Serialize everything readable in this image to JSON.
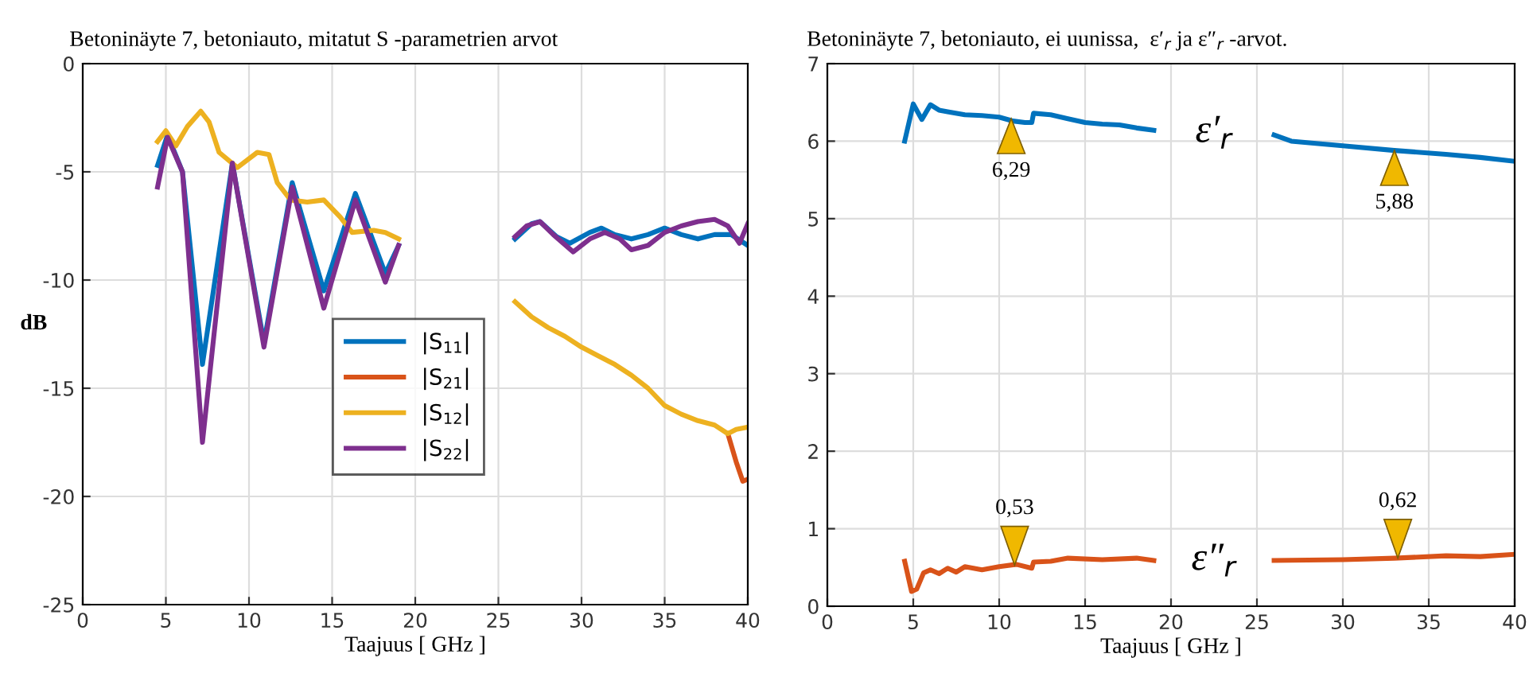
{
  "chart_data": [
    {
      "type": "line",
      "title": "Betoninäyte 7, betoniauto, mitatut S -parametrien arvot",
      "xlabel": "Taajuus [ GHz ]",
      "ylabel": "dB",
      "xlim": [
        0,
        40
      ],
      "xticks": [
        0,
        5,
        10,
        15,
        20,
        25,
        30,
        35,
        40
      ],
      "ylim": [
        -25,
        0
      ],
      "yticks": [
        -25,
        -20,
        -15,
        -10,
        -5,
        0
      ],
      "grid": true,
      "legend": "center",
      "marker": "none",
      "line_style": "solid",
      "series": [
        {
          "name": "|S$_{11}$|",
          "color": "#0072bd",
          "x": [
            4.5,
            5.1,
            6,
            7.2,
            9,
            10.9,
            12.6,
            14.5,
            16.4,
            18.2,
            19,
            22,
            26,
            27,
            27.5,
            28.5,
            29.3,
            30.5,
            31.2,
            32,
            33,
            34,
            35,
            36,
            37,
            38,
            39,
            40
          ],
          "values": [
            -4.7,
            -3.3,
            -5,
            -13.9,
            -4.6,
            -12.9,
            -5.5,
            -10.5,
            -6.0,
            -9.7,
            -8.4,
            null,
            -8.1,
            -7.4,
            -7.3,
            -8.0,
            -8.3,
            -7.8,
            -7.6,
            -7.9,
            -8.1,
            -7.9,
            -7.6,
            -7.9,
            -8.1,
            -7.9,
            -7.9,
            -8.4
          ]
        },
        {
          "name": "|S$_{21}$|",
          "color": "#d95319",
          "x": [
            38.8,
            39.3,
            39.7,
            40
          ],
          "values": [
            -17.1,
            -18.4,
            -19.3,
            -19.2
          ]
        },
        {
          "name": "|S$_{12}$|",
          "color": "#edb120",
          "x": [
            4.5,
            5,
            5.6,
            6.3,
            7.1,
            7.6,
            8.2,
            9.3,
            10.5,
            11.2,
            11.7,
            12.5,
            13.5,
            14.5,
            15.5,
            16.2,
            17.5,
            18.2,
            19,
            22,
            26,
            27,
            28,
            29,
            30,
            31,
            32,
            33,
            34,
            35,
            36,
            37,
            38,
            38.8,
            39.3,
            40
          ],
          "values": [
            -3.6,
            -3.1,
            -3.8,
            -2.9,
            -2.2,
            -2.7,
            -4.1,
            -4.8,
            -4.1,
            -4.2,
            -5.5,
            -6.3,
            -6.4,
            -6.3,
            -7.1,
            -7.8,
            -7.7,
            -7.8,
            -8.1,
            null,
            -11.0,
            -11.7,
            -12.2,
            -12.6,
            -13.1,
            -13.5,
            -13.9,
            -14.4,
            -15.0,
            -15.8,
            -16.2,
            -16.5,
            -16.7,
            -17.1,
            -16.9,
            -16.8
          ]
        },
        {
          "name": "|S$_{22}$|",
          "color": "#7e2f8e",
          "x": [
            4.5,
            5.1,
            6,
            7.2,
            9,
            10.9,
            12.6,
            14.5,
            16.4,
            18.2,
            19,
            22,
            26,
            26.7,
            27.5,
            28.3,
            29.5,
            30.5,
            31.4,
            32.3,
            33,
            34,
            35,
            36,
            37,
            38,
            38.8,
            39.5,
            40
          ],
          "values": [
            -5.7,
            -3.4,
            -5,
            -17.5,
            -4.6,
            -13.1,
            -5.7,
            -11.3,
            -6.3,
            -10.1,
            -8.4,
            null,
            -8.0,
            -7.5,
            -7.3,
            -7.9,
            -8.7,
            -8.1,
            -7.8,
            -8.1,
            -8.6,
            -8.4,
            -7.8,
            -7.5,
            -7.3,
            -7.2,
            -7.5,
            -8.3,
            -7.4
          ]
        }
      ]
    },
    {
      "type": "line",
      "title": "Betoninäyte 7, betoniauto, ei uunissa,  ε′$_{r}$ ja ε″$_{r}$ -arvot.",
      "xlabel": "Taajuus [ GHz ]",
      "xlim": [
        0,
        40
      ],
      "xticks": [
        0,
        5,
        10,
        15,
        20,
        25,
        30,
        35,
        40
      ],
      "ylim": [
        0,
        7
      ],
      "yticks": [
        0,
        1,
        2,
        3,
        4,
        5,
        6,
        7
      ],
      "grid": true,
      "marker": "none",
      "line_style": "solid",
      "series": [
        {
          "name": "ε′$_{r}$",
          "color": "#0072bd",
          "x": [
            4.5,
            5,
            5.5,
            6,
            6.5,
            7,
            8,
            9,
            10,
            10.8,
            11.5,
            11.9,
            12,
            13,
            14,
            15,
            16,
            17,
            18,
            19,
            22,
            26,
            27,
            30,
            33,
            36,
            38,
            40
          ],
          "values": [
            6.0,
            6.48,
            6.28,
            6.47,
            6.4,
            6.38,
            6.34,
            6.33,
            6.31,
            6.26,
            6.24,
            6.24,
            6.36,
            6.34,
            6.29,
            6.24,
            6.22,
            6.21,
            6.17,
            6.14,
            null,
            6.08,
            6.0,
            5.94,
            5.88,
            5.83,
            5.79,
            5.74
          ]
        },
        {
          "name": "ε″$_{r}$",
          "color": "#d95319",
          "x": [
            4.5,
            4.9,
            5.2,
            5.6,
            6,
            6.5,
            7,
            7.5,
            8,
            9,
            10,
            11,
            11.9,
            12,
            13,
            14,
            16,
            18,
            19,
            22,
            26,
            30,
            33,
            36,
            38,
            40
          ],
          "values": [
            0.58,
            0.19,
            0.22,
            0.43,
            0.47,
            0.42,
            0.49,
            0.44,
            0.51,
            0.47,
            0.51,
            0.54,
            0.49,
            0.57,
            0.58,
            0.62,
            0.6,
            0.62,
            0.59,
            null,
            0.59,
            0.6,
            0.62,
            0.65,
            0.64,
            0.67
          ]
        }
      ],
      "annotations": [
        {
          "text": "6,29",
          "x": 10.7,
          "y": 6.29
        },
        {
          "text": "5,88",
          "x": 33,
          "y": 5.88
        },
        {
          "text": "0,53",
          "x": 10.9,
          "y": 0.53
        },
        {
          "text": "0,62",
          "x": 33.2,
          "y": 0.62
        }
      ]
    }
  ]
}
